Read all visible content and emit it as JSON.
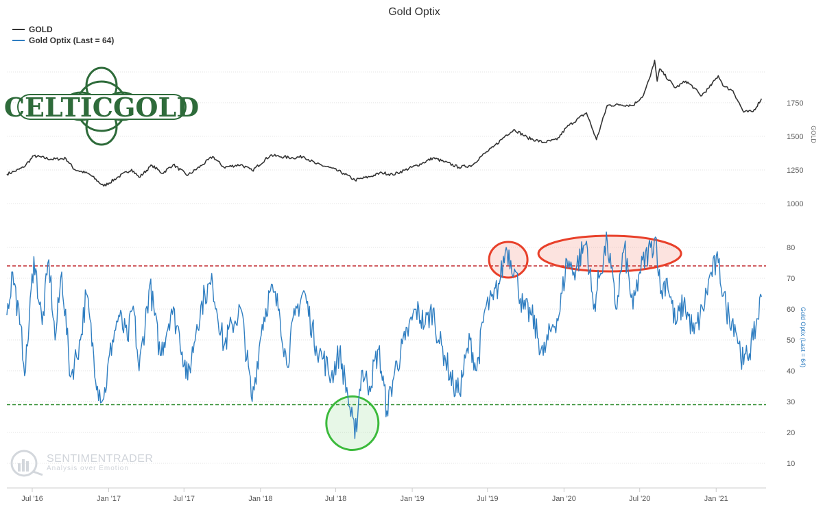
{
  "colors": {
    "gold_line": "#333333",
    "optix_line": "#2f7ec1",
    "upper_threshold": "#c0282e",
    "lower_threshold": "#2a8a2a",
    "red_ellipse": "#e8402a",
    "green_circle": "#3cba3c",
    "logo_green": "#2e6b3a"
  },
  "logo": {
    "text": "CELTICGOLD"
  },
  "watermark": {
    "name": "SENTIMENTRADER",
    "tagline": "Analysis over Emotion"
  },
  "chart_data": {
    "type": "line",
    "title": "Gold Optix",
    "legend": {
      "placement": "top-left",
      "entries": [
        "GOLD",
        "Gold Optix (Last = 64)"
      ]
    },
    "x_ticks": [
      "Jul '16",
      "Jan '17",
      "Jul '17",
      "Jan '18",
      "Jul '18",
      "Jan '19",
      "Jul '19",
      "Jan '20",
      "Jul '20",
      "Jan '21"
    ],
    "x_range": [
      "2016-05",
      "2021-05"
    ],
    "grid": true,
    "panels": [
      {
        "name": "GOLD",
        "axis_label": "GOLD",
        "y_ticks": [
          1000,
          1250,
          1500,
          1750
        ],
        "ylim": [
          960,
          2080
        ],
        "anchors": [
          [
            "2016-05-01",
            1220
          ],
          [
            "2016-05-20",
            1240
          ],
          [
            "2016-06-10",
            1270
          ],
          [
            "2016-07-05",
            1355
          ],
          [
            "2016-08-15",
            1330
          ],
          [
            "2016-09-20",
            1335
          ],
          [
            "2016-10-10",
            1255
          ],
          [
            "2016-11-15",
            1220
          ],
          [
            "2016-12-20",
            1130
          ],
          [
            "2017-01-25",
            1200
          ],
          [
            "2017-02-25",
            1255
          ],
          [
            "2017-03-15",
            1195
          ],
          [
            "2017-04-15",
            1285
          ],
          [
            "2017-05-10",
            1225
          ],
          [
            "2017-06-05",
            1290
          ],
          [
            "2017-07-10",
            1210
          ],
          [
            "2017-08-15",
            1290
          ],
          [
            "2017-09-08",
            1350
          ],
          [
            "2017-10-05",
            1270
          ],
          [
            "2017-11-15",
            1290
          ],
          [
            "2017-12-12",
            1245
          ],
          [
            "2018-01-25",
            1360
          ],
          [
            "2018-02-15",
            1350
          ],
          [
            "2018-03-20",
            1340
          ],
          [
            "2018-04-15",
            1350
          ],
          [
            "2018-05-15",
            1295
          ],
          [
            "2018-06-15",
            1270
          ],
          [
            "2018-07-20",
            1225
          ],
          [
            "2018-08-16",
            1175
          ],
          [
            "2018-09-20",
            1200
          ],
          [
            "2018-10-20",
            1230
          ],
          [
            "2018-11-15",
            1215
          ],
          [
            "2018-12-15",
            1250
          ],
          [
            "2019-01-25",
            1300
          ],
          [
            "2019-02-20",
            1340
          ],
          [
            "2019-03-20",
            1310
          ],
          [
            "2019-04-23",
            1270
          ],
          [
            "2019-05-25",
            1285
          ],
          [
            "2019-06-15",
            1350
          ],
          [
            "2019-07-15",
            1420
          ],
          [
            "2019-08-15",
            1510
          ],
          [
            "2019-09-04",
            1550
          ],
          [
            "2019-10-05",
            1490
          ],
          [
            "2019-11-12",
            1455
          ],
          [
            "2019-12-15",
            1475
          ],
          [
            "2020-01-08",
            1570
          ],
          [
            "2020-02-24",
            1675
          ],
          [
            "2020-03-19",
            1475
          ],
          [
            "2020-04-14",
            1730
          ],
          [
            "2020-05-15",
            1735
          ],
          [
            "2020-06-15",
            1730
          ],
          [
            "2020-07-10",
            1805
          ],
          [
            "2020-07-27",
            1950
          ],
          [
            "2020-08-06",
            2065
          ],
          [
            "2020-08-12",
            1910
          ],
          [
            "2020-08-18",
            2000
          ],
          [
            "2020-09-25",
            1860
          ],
          [
            "2020-10-20",
            1910
          ],
          [
            "2020-11-09",
            1860
          ],
          [
            "2020-11-25",
            1800
          ],
          [
            "2020-12-15",
            1860
          ],
          [
            "2021-01-06",
            1950
          ],
          [
            "2021-01-20",
            1870
          ],
          [
            "2021-02-10",
            1840
          ],
          [
            "2021-03-08",
            1680
          ],
          [
            "2021-03-31",
            1685
          ],
          [
            "2021-04-20",
            1780
          ]
        ]
      },
      {
        "name": "Gold Optix (Last = 64)",
        "axis_label": "Gold Optix (Last = 64)",
        "y_ticks": [
          10,
          20,
          30,
          40,
          50,
          60,
          70,
          80
        ],
        "ylim": [
          2,
          88
        ],
        "thresholds": [
          74,
          29
        ],
        "anchors": [
          [
            "2016-05-01",
            58
          ],
          [
            "2016-05-15",
            72
          ],
          [
            "2016-06-01",
            55
          ],
          [
            "2016-06-15",
            40
          ],
          [
            "2016-07-05",
            77
          ],
          [
            "2016-07-25",
            55
          ],
          [
            "2016-08-10",
            76
          ],
          [
            "2016-08-25",
            50
          ],
          [
            "2016-09-10",
            72
          ],
          [
            "2016-10-01",
            38
          ],
          [
            "2016-10-25",
            50
          ],
          [
            "2016-11-08",
            65
          ],
          [
            "2016-12-05",
            35
          ],
          [
            "2016-12-20",
            31
          ],
          [
            "2017-01-10",
            50
          ],
          [
            "2017-01-25",
            58
          ],
          [
            "2017-02-15",
            50
          ],
          [
            "2017-03-01",
            61
          ],
          [
            "2017-03-15",
            40
          ],
          [
            "2017-04-10",
            68
          ],
          [
            "2017-05-05",
            45
          ],
          [
            "2017-06-01",
            60
          ],
          [
            "2017-06-20",
            52
          ],
          [
            "2017-07-10",
            37
          ],
          [
            "2017-08-01",
            55
          ],
          [
            "2017-08-20",
            65
          ],
          [
            "2017-09-08",
            68
          ],
          [
            "2017-10-05",
            48
          ],
          [
            "2017-10-25",
            55
          ],
          [
            "2017-11-15",
            60
          ],
          [
            "2017-12-12",
            30
          ],
          [
            "2018-01-05",
            55
          ],
          [
            "2018-01-25",
            66
          ],
          [
            "2018-02-15",
            60
          ],
          [
            "2018-03-05",
            42
          ],
          [
            "2018-03-25",
            58
          ],
          [
            "2018-04-15",
            66
          ],
          [
            "2018-05-15",
            48
          ],
          [
            "2018-06-01",
            44
          ],
          [
            "2018-06-20",
            38
          ],
          [
            "2018-07-10",
            46
          ],
          [
            "2018-07-30",
            32
          ],
          [
            "2018-08-16",
            18
          ],
          [
            "2018-09-01",
            40
          ],
          [
            "2018-09-20",
            35
          ],
          [
            "2018-10-12",
            47
          ],
          [
            "2018-11-01",
            27
          ],
          [
            "2018-11-20",
            40
          ],
          [
            "2018-12-15",
            50
          ],
          [
            "2019-01-10",
            60
          ],
          [
            "2019-02-01",
            55
          ],
          [
            "2019-02-20",
            60
          ],
          [
            "2019-03-05",
            50
          ],
          [
            "2019-03-20",
            45
          ],
          [
            "2019-04-10",
            35
          ],
          [
            "2019-04-23",
            33
          ],
          [
            "2019-05-20",
            50
          ],
          [
            "2019-06-05",
            40
          ],
          [
            "2019-06-25",
            60
          ],
          [
            "2019-07-15",
            63
          ],
          [
            "2019-08-01",
            70
          ],
          [
            "2019-08-15",
            80
          ],
          [
            "2019-09-04",
            73
          ],
          [
            "2019-09-25",
            60
          ],
          [
            "2019-10-15",
            58
          ],
          [
            "2019-11-12",
            45
          ],
          [
            "2019-12-05",
            55
          ],
          [
            "2019-12-20",
            58
          ],
          [
            "2020-01-08",
            76
          ],
          [
            "2020-01-25",
            72
          ],
          [
            "2020-02-24",
            82
          ],
          [
            "2020-03-12",
            60
          ],
          [
            "2020-03-25",
            70
          ],
          [
            "2020-04-14",
            82
          ],
          [
            "2020-05-05",
            60
          ],
          [
            "2020-05-25",
            80
          ],
          [
            "2020-06-15",
            60
          ],
          [
            "2020-07-01",
            72
          ],
          [
            "2020-07-27",
            80
          ],
          [
            "2020-08-10",
            83
          ],
          [
            "2020-08-20",
            65
          ],
          [
            "2020-09-05",
            70
          ],
          [
            "2020-09-25",
            55
          ],
          [
            "2020-10-15",
            62
          ],
          [
            "2020-11-09",
            52
          ],
          [
            "2020-11-30",
            60
          ],
          [
            "2020-12-20",
            72
          ],
          [
            "2021-01-06",
            75
          ],
          [
            "2021-01-25",
            60
          ],
          [
            "2021-02-15",
            55
          ],
          [
            "2021-03-08",
            42
          ],
          [
            "2021-03-31",
            50
          ],
          [
            "2021-04-20",
            64
          ]
        ]
      }
    ],
    "annotations": [
      {
        "shape": "ellipse",
        "color": "red",
        "panel": 1,
        "x": "2019-08-20",
        "y": 76
      },
      {
        "shape": "ellipse",
        "color": "red",
        "panel": 1,
        "x": "2020-04-20",
        "y": 78
      },
      {
        "shape": "circle",
        "color": "green",
        "panel": 1,
        "x": "2018-08-10",
        "y": 23
      }
    ]
  }
}
